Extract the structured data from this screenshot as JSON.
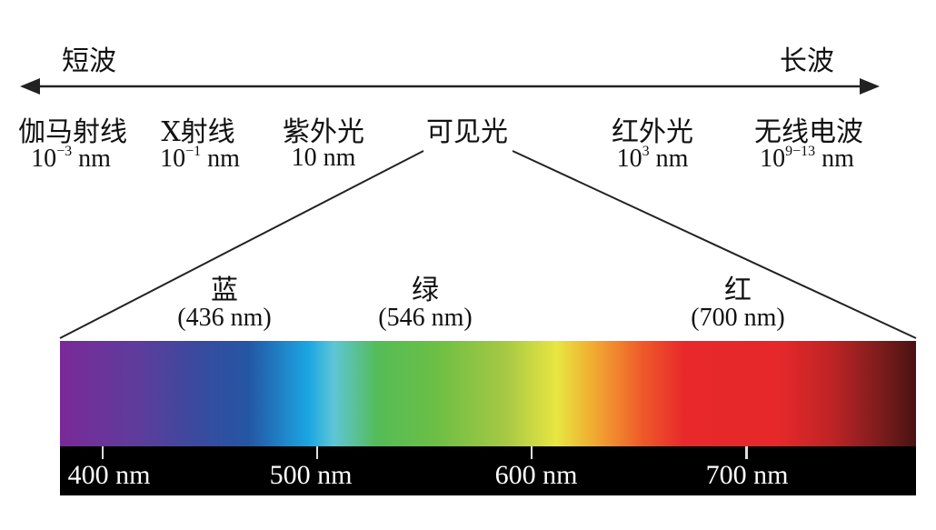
{
  "arrow": {
    "left_label": "短波",
    "right_label": "长波"
  },
  "bands": [
    {
      "name": "伽马射线",
      "base": "10",
      "exp": "−3",
      "unit": " nm"
    },
    {
      "name": "X射线",
      "base": "10",
      "exp": "−1",
      "unit": " nm"
    },
    {
      "name": "紫外光",
      "base": "10 nm",
      "exp": "",
      "unit": ""
    },
    {
      "name": "可见光",
      "base": "",
      "exp": "",
      "unit": ""
    },
    {
      "name": "红外光",
      "base": "10",
      "exp": "3",
      "unit": " nm"
    },
    {
      "name": "无线电波",
      "base": "10",
      "exp": "9−13",
      "unit": " nm"
    }
  ],
  "colors": [
    {
      "name": "蓝",
      "wavelength": "(436 nm)"
    },
    {
      "name": "绿",
      "wavelength": "(546 nm)"
    },
    {
      "name": "红",
      "wavelength": "(700 nm)"
    }
  ],
  "scale_ticks": [
    "400 nm",
    "500 nm",
    "600 nm",
    "700 nm"
  ],
  "spectrum_range_nm": [
    380,
    780
  ]
}
